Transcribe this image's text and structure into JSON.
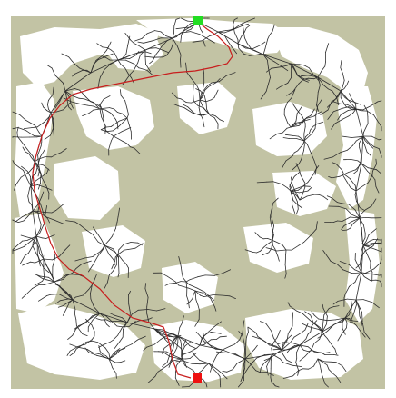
{
  "diagram": {
    "type": "rrt-path-planning-map",
    "colors": {
      "page_background": "#ffffff",
      "obstacle": "#c2c3a4",
      "free_space": "#ffffff",
      "tree_edges": "#2e2e2e",
      "path": "#c81e1e",
      "start_marker": "#22dd22",
      "goal_marker": "#ee1111"
    },
    "markers": {
      "start": {
        "icon": "green-square-icon"
      },
      "goal": {
        "icon": "red-square-icon"
      }
    }
  }
}
